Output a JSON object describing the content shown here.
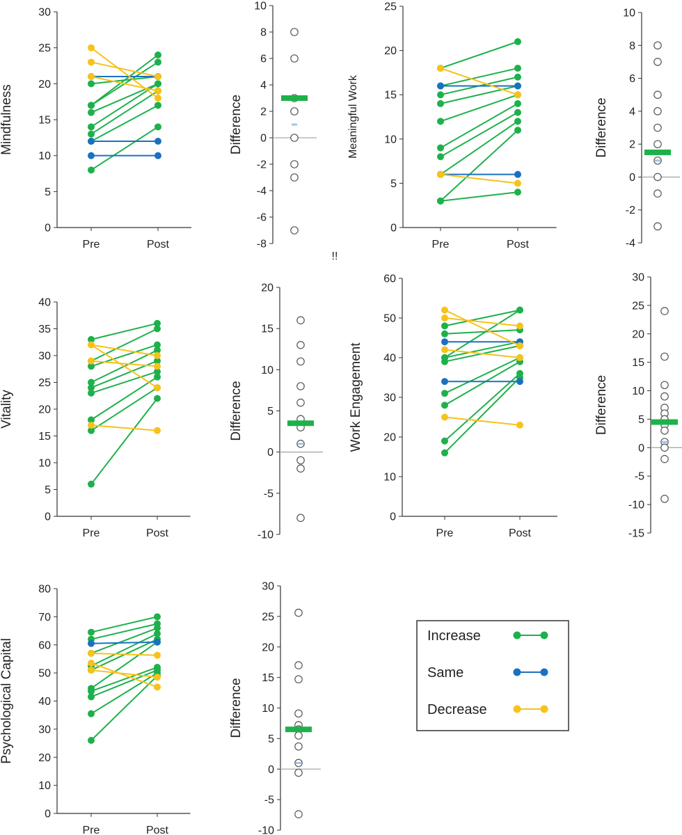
{
  "colors": {
    "increase": "#1db14b",
    "same": "#1a71c0",
    "decrease": "#f7c21a",
    "axis": "#333333",
    "zero": "#aaaaaa",
    "mean": "#1db14b",
    "median": "#a3c4e8"
  },
  "legend": {
    "items": [
      {
        "label": "Increase",
        "color_key": "increase"
      },
      {
        "label": "Same",
        "color_key": "same"
      },
      {
        "label": "Decrease",
        "color_key": "decrease"
      }
    ]
  },
  "stray_mark": "!!",
  "chart_data": [
    {
      "id": "mindfulness-prepost",
      "type": "line",
      "ylabel": "Mindfulness",
      "categories": [
        "Pre",
        "Post"
      ],
      "ylim": [
        0,
        30
      ],
      "yticks": [
        0,
        5,
        10,
        15,
        20,
        25,
        30
      ],
      "series": [
        {
          "status": "increase",
          "values": [
            8,
            14
          ]
        },
        {
          "status": "increase",
          "values": [
            12,
            17
          ]
        },
        {
          "status": "increase",
          "values": [
            13,
            19
          ]
        },
        {
          "status": "increase",
          "values": [
            14,
            20
          ]
        },
        {
          "status": "increase",
          "values": [
            16,
            20
          ]
        },
        {
          "status": "increase",
          "values": [
            17,
            23
          ]
        },
        {
          "status": "increase",
          "values": [
            17,
            24
          ]
        },
        {
          "status": "increase",
          "values": [
            20,
            21
          ]
        },
        {
          "status": "same",
          "values": [
            21,
            21
          ]
        },
        {
          "status": "same",
          "values": [
            12,
            12
          ]
        },
        {
          "status": "same",
          "values": [
            10,
            10
          ]
        },
        {
          "status": "decrease",
          "values": [
            25,
            18
          ]
        },
        {
          "status": "decrease",
          "values": [
            23,
            21
          ]
        },
        {
          "status": "decrease",
          "values": [
            21,
            19
          ]
        }
      ]
    },
    {
      "id": "mindfulness-diff",
      "type": "scatter",
      "ylabel": "Difference",
      "ylim": [
        -8,
        10
      ],
      "yticks": [
        -8,
        -6,
        -4,
        -2,
        0,
        2,
        4,
        6,
        8,
        10
      ],
      "values": [
        8,
        6,
        3,
        2,
        0,
        -2,
        -3,
        -7
      ],
      "mean": 3,
      "median": 1
    },
    {
      "id": "meaningful-work-prepost",
      "type": "line",
      "ylabel": "Meaningful Work",
      "categories": [
        "Pre",
        "Post"
      ],
      "ylim": [
        0,
        25
      ],
      "yticks": [
        0,
        5,
        10,
        15,
        20,
        25
      ],
      "series": [
        {
          "status": "increase",
          "values": [
            3,
            4
          ]
        },
        {
          "status": "increase",
          "values": [
            3,
            11
          ]
        },
        {
          "status": "increase",
          "values": [
            6,
            12
          ]
        },
        {
          "status": "increase",
          "values": [
            8,
            13
          ]
        },
        {
          "status": "increase",
          "values": [
            9,
            14
          ]
        },
        {
          "status": "increase",
          "values": [
            12,
            15
          ]
        },
        {
          "status": "increase",
          "values": [
            14,
            16
          ]
        },
        {
          "status": "increase",
          "values": [
            15,
            17
          ]
        },
        {
          "status": "increase",
          "values": [
            16,
            18
          ]
        },
        {
          "status": "increase",
          "values": [
            18,
            21
          ]
        },
        {
          "status": "same",
          "values": [
            16,
            16
          ]
        },
        {
          "status": "same",
          "values": [
            6,
            6
          ]
        },
        {
          "status": "decrease",
          "values": [
            18,
            15
          ]
        },
        {
          "status": "decrease",
          "values": [
            6,
            5
          ]
        }
      ]
    },
    {
      "id": "meaningful-work-diff",
      "type": "scatter",
      "ylabel": "Difference",
      "ylim": [
        -4,
        10
      ],
      "yticks": [
        -4,
        -2,
        0,
        2,
        4,
        6,
        8,
        10
      ],
      "values": [
        8,
        7,
        5,
        4,
        3,
        2,
        1,
        0,
        -1,
        -3
      ],
      "mean": 1.5,
      "median": 1
    },
    {
      "id": "vitality-prepost",
      "type": "line",
      "ylabel": "Vitality",
      "categories": [
        "Pre",
        "Post"
      ],
      "ylim": [
        0,
        40
      ],
      "yticks": [
        0,
        5,
        10,
        15,
        20,
        25,
        30,
        35,
        40
      ],
      "series": [
        {
          "status": "increase",
          "values": [
            6,
            22
          ]
        },
        {
          "status": "increase",
          "values": [
            16,
            24
          ]
        },
        {
          "status": "increase",
          "values": [
            18,
            26
          ]
        },
        {
          "status": "increase",
          "values": [
            23,
            27
          ]
        },
        {
          "status": "increase",
          "values": [
            24,
            29
          ]
        },
        {
          "status": "increase",
          "values": [
            25,
            31
          ]
        },
        {
          "status": "increase",
          "values": [
            28,
            32
          ]
        },
        {
          "status": "increase",
          "values": [
            29,
            35
          ]
        },
        {
          "status": "increase",
          "values": [
            33,
            36
          ]
        },
        {
          "status": "decrease",
          "values": [
            32,
            30
          ]
        },
        {
          "status": "decrease",
          "values": [
            29,
            28
          ]
        },
        {
          "status": "decrease",
          "values": [
            32,
            24
          ]
        },
        {
          "status": "decrease",
          "values": [
            17,
            16
          ]
        }
      ]
    },
    {
      "id": "vitality-diff",
      "type": "scatter",
      "ylabel": "Difference",
      "ylim": [
        -10,
        20
      ],
      "yticks": [
        -10,
        -5,
        0,
        5,
        10,
        15,
        20
      ],
      "values": [
        16,
        13,
        11,
        8,
        6,
        4,
        3,
        1,
        -1,
        -2,
        -8
      ],
      "mean": 3.5,
      "median": 1
    },
    {
      "id": "work-engagement-prepost",
      "type": "line",
      "ylabel": "Work Engagement",
      "categories": [
        "Pre",
        "Post"
      ],
      "ylim": [
        0,
        60
      ],
      "yticks": [
        0,
        10,
        20,
        30,
        40,
        50,
        60
      ],
      "series": [
        {
          "status": "increase",
          "values": [
            16,
            35
          ]
        },
        {
          "status": "increase",
          "values": [
            19,
            36
          ]
        },
        {
          "status": "increase",
          "values": [
            28,
            39
          ]
        },
        {
          "status": "increase",
          "values": [
            31,
            40
          ]
        },
        {
          "status": "increase",
          "values": [
            39,
            43
          ]
        },
        {
          "status": "increase",
          "values": [
            40,
            44
          ]
        },
        {
          "status": "increase",
          "values": [
            46,
            47
          ]
        },
        {
          "status": "increase",
          "values": [
            48,
            52
          ]
        },
        {
          "status": "increase",
          "values": [
            40,
            52
          ]
        },
        {
          "status": "same",
          "values": [
            44,
            44
          ]
        },
        {
          "status": "same",
          "values": [
            34,
            34
          ]
        },
        {
          "status": "decrease",
          "values": [
            52,
            43
          ]
        },
        {
          "status": "decrease",
          "values": [
            50,
            48
          ]
        },
        {
          "status": "decrease",
          "values": [
            42,
            40
          ]
        },
        {
          "status": "decrease",
          "values": [
            25,
            23
          ]
        }
      ]
    },
    {
      "id": "work-engagement-diff",
      "type": "scatter",
      "ylabel": "Difference",
      "ylim": [
        -15,
        30
      ],
      "yticks": [
        -15,
        -10,
        -5,
        0,
        5,
        10,
        15,
        20,
        25,
        30
      ],
      "values": [
        24,
        16,
        11,
        9,
        7,
        6,
        5,
        4,
        3,
        1,
        0,
        -2,
        -9
      ],
      "mean": 4.5,
      "median": 1
    },
    {
      "id": "psycap-prepost",
      "type": "line",
      "ylabel": "Psychological Capital",
      "categories": [
        "Pre",
        "Post"
      ],
      "ylim": [
        0,
        80
      ],
      "yticks": [
        0,
        10,
        20,
        30,
        40,
        50,
        60,
        70,
        80
      ],
      "series": [
        {
          "status": "increase",
          "values": [
            26,
            49
          ]
        },
        {
          "status": "increase",
          "values": [
            35.5,
            50
          ]
        },
        {
          "status": "increase",
          "values": [
            41.5,
            51
          ]
        },
        {
          "status": "increase",
          "values": [
            43.5,
            52
          ]
        },
        {
          "status": "increase",
          "values": [
            44.5,
            61
          ]
        },
        {
          "status": "increase",
          "values": [
            51,
            62
          ]
        },
        {
          "status": "increase",
          "values": [
            52.5,
            64
          ]
        },
        {
          "status": "increase",
          "values": [
            57,
            66
          ]
        },
        {
          "status": "increase",
          "values": [
            62,
            67.5
          ]
        },
        {
          "status": "increase",
          "values": [
            64.5,
            70
          ]
        },
        {
          "status": "same",
          "values": [
            60.5,
            61
          ]
        },
        {
          "status": "decrease",
          "values": [
            57,
            56.3
          ]
        },
        {
          "status": "decrease",
          "values": [
            53.5,
            45
          ]
        },
        {
          "status": "decrease",
          "values": [
            51,
            48.5
          ]
        }
      ]
    },
    {
      "id": "psycap-diff",
      "type": "scatter",
      "ylabel": "Difference",
      "ylim": [
        -10,
        30
      ],
      "yticks": [
        -10,
        -5,
        0,
        5,
        10,
        15,
        20,
        25,
        30
      ],
      "values": [
        25.6,
        17,
        14.7,
        9.1,
        7.2,
        6.5,
        5.5,
        3.7,
        1,
        -0.6,
        -7.4
      ],
      "mean": 6.5,
      "median": 1
    }
  ]
}
